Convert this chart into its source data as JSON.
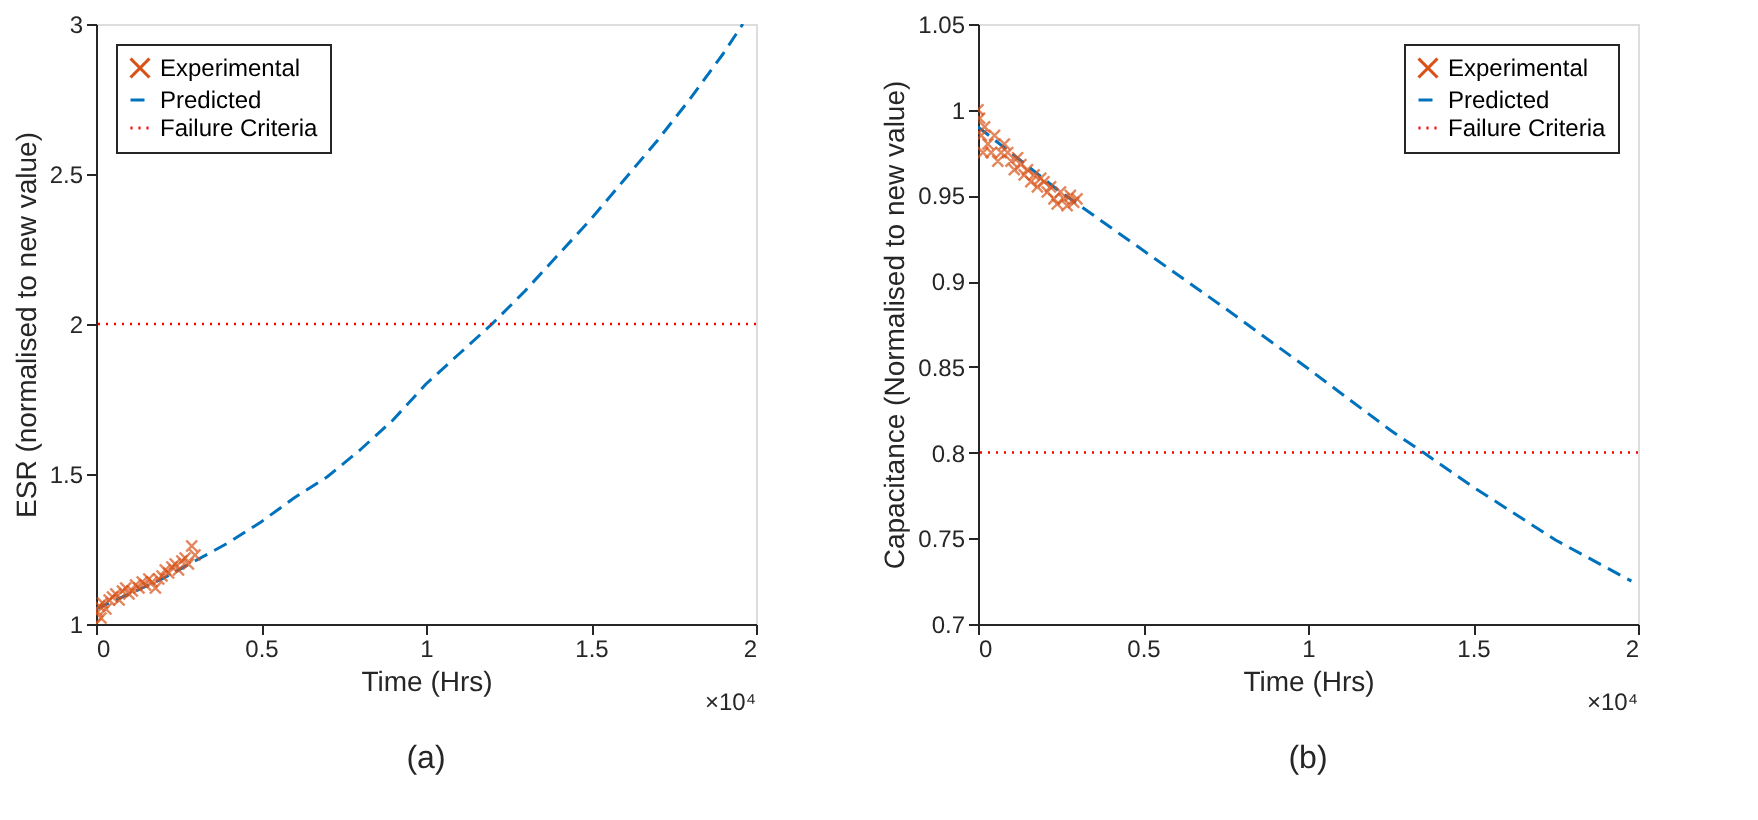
{
  "chart_data": [
    {
      "type": "scatter",
      "title": "(a)",
      "xlabel": "Time  (Hrs)",
      "ylabel": "ESR (normalised to new value)",
      "xlim": [
        0,
        2
      ],
      "xticks": [
        0,
        0.5,
        1,
        1.5,
        2
      ],
      "ylim": [
        1,
        3
      ],
      "yticks": [
        1,
        1.5,
        2,
        2.5,
        3
      ],
      "grid": false,
      "legend": "top left",
      "annotations": [
        "×10⁴"
      ],
      "series": [
        {
          "name": "Experimental",
          "type": "scatter",
          "marker": "cross",
          "color": "#d95319",
          "x": [
            0,
            0.005,
            0.01,
            0.015,
            0.02,
            0.03,
            0.04,
            0.05,
            0.06,
            0.07,
            0.08,
            0.09,
            0.1,
            0.11,
            0.12,
            0.13,
            0.14,
            0.15,
            0.16,
            0.17,
            0.18,
            0.19,
            0.2,
            0.21,
            0.22,
            0.23,
            0.24,
            0.25,
            0.26,
            0.27,
            0.28,
            0.29,
            0.3
          ],
          "values": [
            1.0,
            1.04,
            1.06,
            1.02,
            1.07,
            1.05,
            1.08,
            1.09,
            1.1,
            1.08,
            1.11,
            1.12,
            1.1,
            1.11,
            1.13,
            1.12,
            1.14,
            1.13,
            1.15,
            1.14,
            1.12,
            1.15,
            1.16,
            1.18,
            1.17,
            1.19,
            1.2,
            1.18,
            1.21,
            1.22,
            1.2,
            1.26,
            1.23
          ]
        },
        {
          "name": "Predicted",
          "type": "line",
          "line_style": "dashed",
          "color": "#0072bd",
          "x": [
            0,
            0.2,
            0.4,
            0.5,
            0.6,
            0.7,
            0.8,
            0.9,
            1.0,
            1.1,
            1.2,
            1.3,
            1.4,
            1.5,
            1.6,
            1.7,
            1.8,
            1.9,
            1.96
          ],
          "values": [
            1.05,
            1.15,
            1.27,
            1.34,
            1.42,
            1.49,
            1.58,
            1.68,
            1.8,
            1.9,
            2.0,
            2.11,
            2.23,
            2.35,
            2.48,
            2.61,
            2.75,
            2.9,
            3.0
          ]
        }
      ],
      "ref_lines": [
        {
          "axis": "y",
          "value": 2,
          "label": "Failure Criteria",
          "color": "#ff0000",
          "line_style": "dotted"
        }
      ]
    },
    {
      "type": "scatter",
      "title": "(b)",
      "xlabel": "Time (Hrs)",
      "ylabel": "Capacitance (Normalised to new value)",
      "xlim": [
        0,
        2
      ],
      "xticks": [
        0,
        0.5,
        1,
        1.5,
        2
      ],
      "ylim": [
        0.7,
        1.05
      ],
      "yticks": [
        0.7,
        0.75,
        0.8,
        0.85,
        0.9,
        0.95,
        1,
        1.05
      ],
      "grid": false,
      "legend": "top right",
      "annotations": [
        "×10⁴"
      ],
      "series": [
        {
          "name": "Experimental",
          "type": "scatter",
          "marker": "cross",
          "color": "#d95319",
          "x": [
            0,
            0.005,
            0.01,
            0.015,
            0.02,
            0.03,
            0.04,
            0.05,
            0.06,
            0.07,
            0.08,
            0.09,
            0.1,
            0.11,
            0.12,
            0.13,
            0.14,
            0.15,
            0.16,
            0.17,
            0.18,
            0.19,
            0.2,
            0.21,
            0.22,
            0.23,
            0.24,
            0.25,
            0.26,
            0.27,
            0.28,
            0.29,
            0.3
          ],
          "values": [
            1.0,
            0.995,
            0.985,
            0.975,
            0.99,
            0.98,
            0.975,
            0.985,
            0.97,
            0.975,
            0.98,
            0.975,
            0.97,
            0.965,
            0.972,
            0.968,
            0.962,
            0.965,
            0.958,
            0.962,
            0.955,
            0.96,
            0.958,
            0.952,
            0.955,
            0.948,
            0.945,
            0.952,
            0.948,
            0.944,
            0.95,
            0.946,
            0.948
          ]
        },
        {
          "name": "Predicted",
          "type": "line",
          "line_style": "dashed",
          "color": "#0072bd",
          "x": [
            0,
            0.25,
            0.5,
            0.75,
            1.0,
            1.25,
            1.35,
            1.5,
            1.75,
            1.98
          ],
          "values": [
            0.99,
            0.952,
            0.918,
            0.884,
            0.849,
            0.813,
            0.8,
            0.78,
            0.749,
            0.725
          ]
        }
      ],
      "ref_lines": [
        {
          "axis": "y",
          "value": 0.8,
          "label": "Failure Criteria",
          "color": "#ff0000",
          "line_style": "dotted"
        }
      ]
    }
  ]
}
